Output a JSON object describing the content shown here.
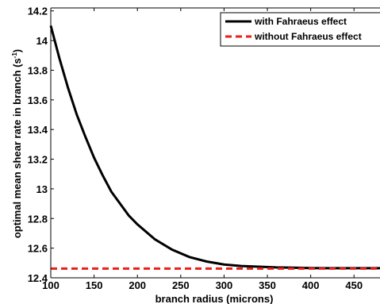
{
  "chart_data": {
    "type": "line",
    "xlabel": "branch radius (microns)",
    "ylabel": "optimal mean shear rate in branch (s",
    "ylabel_sup": "-1",
    "ylabel_close": ")",
    "xlim": [
      100,
      480
    ],
    "ylim": [
      12.4,
      14.22
    ],
    "xticks": [
      100,
      150,
      200,
      250,
      300,
      350,
      400,
      450
    ],
    "yticks": [
      12.4,
      12.6,
      12.8,
      13,
      13.2,
      13.4,
      13.6,
      13.8,
      14,
      14.2
    ],
    "grid": false,
    "legend_position": "top-right",
    "series": [
      {
        "name": "with Fahraeus effect",
        "color": "#000000",
        "style": "solid",
        "x": [
          100,
          110,
          120,
          130,
          140,
          150,
          160,
          170,
          180,
          190,
          200,
          220,
          240,
          260,
          280,
          300,
          320,
          340,
          360,
          380,
          400,
          420,
          440,
          460,
          480
        ],
        "y": [
          14.1,
          13.88,
          13.68,
          13.5,
          13.35,
          13.21,
          13.09,
          12.98,
          12.9,
          12.82,
          12.76,
          12.66,
          12.59,
          12.54,
          12.51,
          12.49,
          12.48,
          12.475,
          12.47,
          12.468,
          12.466,
          12.465,
          12.465,
          12.465,
          12.465
        ]
      },
      {
        "name": "without Fahraeus effect",
        "color": "#e8201a",
        "style": "dashed",
        "x": [
          100,
          480
        ],
        "y": [
          12.462,
          12.462
        ]
      }
    ]
  }
}
